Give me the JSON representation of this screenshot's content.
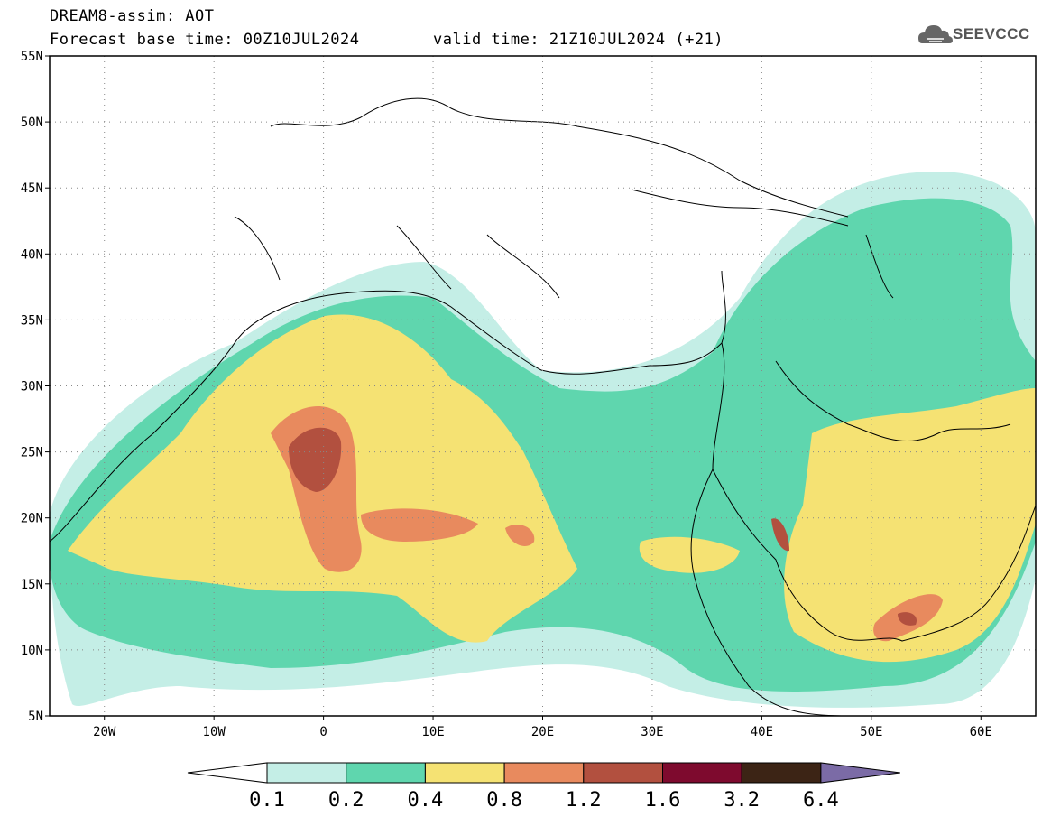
{
  "header": {
    "model_line": "DREAM8-assim: AOT",
    "base_time_label": "Forecast base time: 00Z10JUL2024",
    "valid_time_label": "valid time: 21Z10JUL2024 (+21)"
  },
  "logo": {
    "text": "SEEVCCC",
    "icon": "cloud-icon"
  },
  "map": {
    "lat_labels": [
      "55N",
      "50N",
      "45N",
      "40N",
      "35N",
      "30N",
      "25N",
      "20N",
      "15N",
      "10N",
      "5N"
    ],
    "lat_values": [
      55,
      50,
      45,
      40,
      35,
      30,
      25,
      20,
      15,
      10,
      5
    ],
    "lon_labels": [
      "20W",
      "10W",
      "0",
      "10E",
      "20E",
      "30E",
      "40E",
      "50E",
      "60E"
    ],
    "lon_values": [
      -20,
      -10,
      0,
      10,
      20,
      30,
      40,
      50,
      60
    ],
    "lon_range": [
      -25,
      65
    ],
    "lat_range": [
      5,
      55
    ],
    "grid": true
  },
  "colorbar": {
    "boundaries": [
      "0.1",
      "0.2",
      "0.4",
      "0.8",
      "1.2",
      "1.6",
      "3.2",
      "6.4"
    ],
    "colors": [
      "#ffffff",
      "#c4eee6",
      "#5fd6ae",
      "#f5e273",
      "#e88a5e",
      "#b2503f",
      "#7e0a2e",
      "#3c2415",
      "#7b6ba6"
    ]
  }
}
